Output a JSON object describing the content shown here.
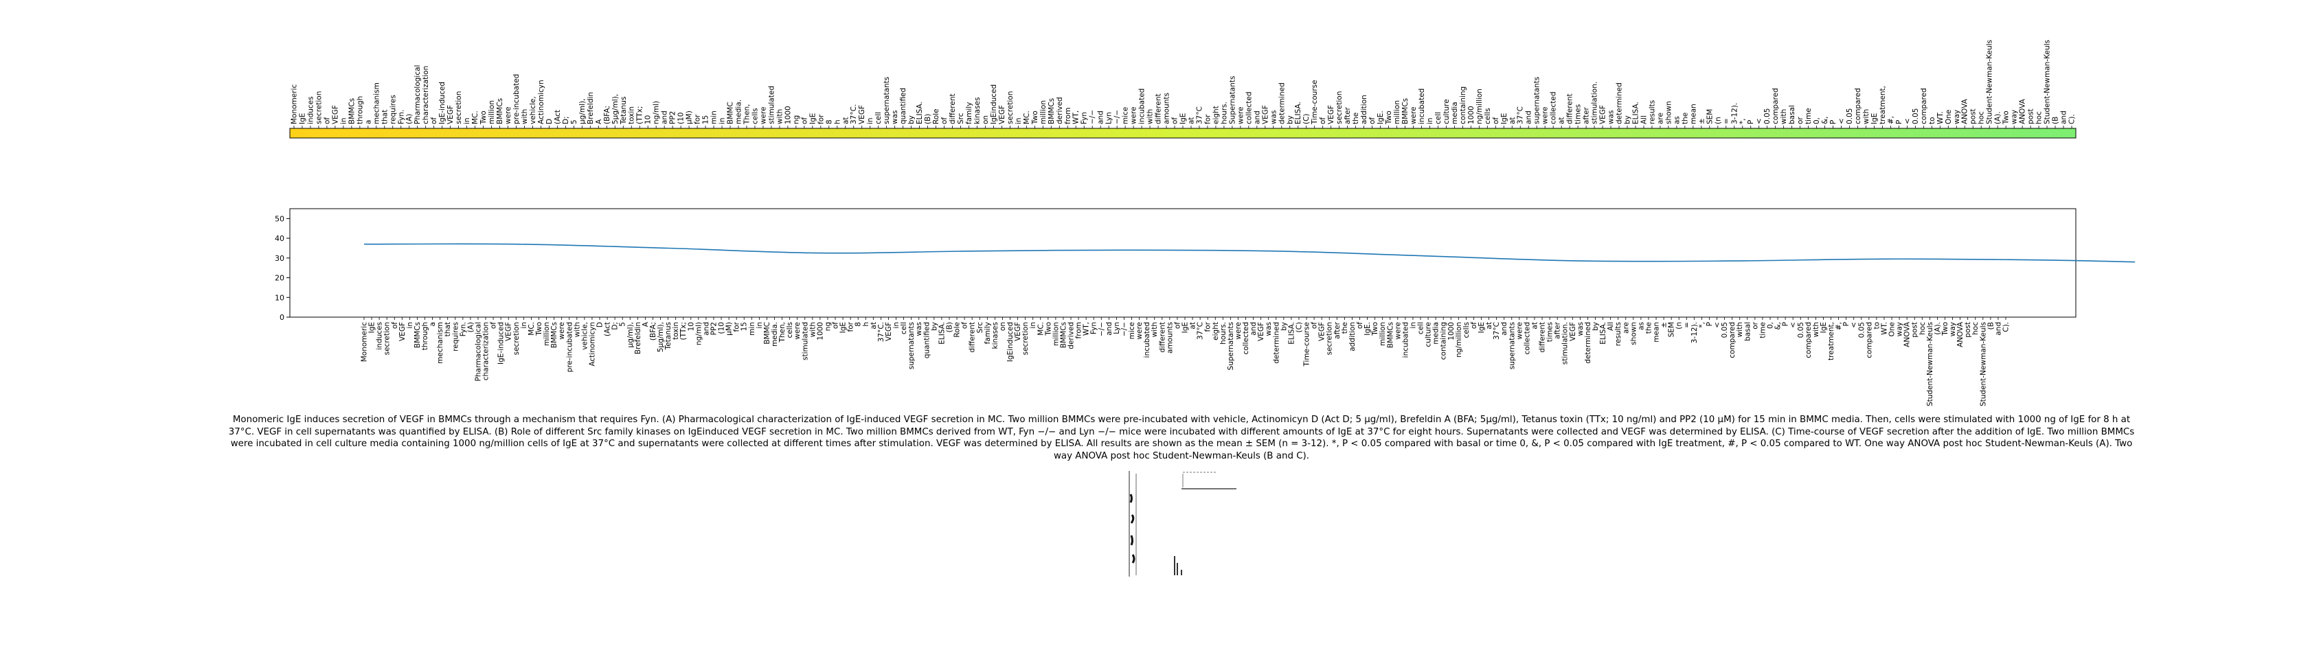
{
  "chart_data": [
    {
      "type": "heatmap",
      "panel": "top",
      "title": "",
      "words": [
        "Monomeric",
        "IgE",
        "induces",
        "secretion",
        "of",
        "VEGF",
        "in",
        "BMMCs",
        "through",
        "a",
        "mechanism",
        "that",
        "requires",
        "Fyn.",
        "(A)",
        "Pharmacological",
        "characterization",
        "of",
        "IgE-induced",
        "VEGF",
        "secretion",
        "in",
        "MC.",
        "Two",
        "million",
        "BMMCs",
        "were",
        "pre-incubated",
        "with",
        "vehicle,",
        "Actinomicyn",
        "D",
        "(Act",
        "D;",
        "5",
        "μg/ml),",
        "Brefeldin",
        "A",
        "(BFA;",
        "5μg/ml),",
        "Tetanus",
        "toxin",
        "(TTx;",
        "10",
        "ng/ml)",
        "and",
        "PP2",
        "(10",
        "μM)",
        "for",
        "15",
        "min",
        "in",
        "BMMC",
        "media.",
        "Then,",
        "cells",
        "were",
        "stimulated",
        "with",
        "1000",
        "ng",
        "of",
        "IgE",
        "for",
        "8",
        "h",
        "at",
        "37°C.",
        "VEGF",
        "in",
        "cell",
        "supernatants",
        "was",
        "quantified",
        "by",
        "ELISA.",
        "(B)",
        "Role",
        "of",
        "different",
        "Src",
        "family",
        "kinases",
        "on",
        "IgEinduced",
        "VEGF",
        "secretion",
        "in",
        "MC.",
        "Two",
        "million",
        "BMMCs",
        "derived",
        "from",
        "WT,",
        "Fyn",
        "−/−",
        "and",
        "Lyn",
        "−/−",
        "mice",
        "were",
        "incubated",
        "with",
        "different",
        "amounts",
        "of",
        "IgE",
        "at",
        "37°C",
        "for",
        "eight",
        "hours.",
        "Supernatants",
        "were",
        "collected",
        "and",
        "VEGF",
        "was",
        "determined",
        "by",
        "ELISA.",
        "(C)",
        "Time-course",
        "of",
        "VEGF",
        "secretion",
        "after",
        "the",
        "addition",
        "of",
        "IgE.",
        "Two",
        "million",
        "BMMCs",
        "were",
        "incubated",
        "in",
        "cell",
        "culture",
        "media",
        "containing",
        "1000",
        "ng/million",
        "cells",
        "of",
        "IgE",
        "at",
        "37°C",
        "and",
        "supernatants",
        "were",
        "collected",
        "at",
        "different",
        "times",
        "after",
        "stimulation.",
        "VEGF",
        "was",
        "determined",
        "by",
        "ELISA.",
        "All",
        "results",
        "are",
        "shown",
        "as",
        "the",
        "mean",
        "±",
        "SEM",
        "(n",
        "=",
        "3-12).",
        "*,",
        "P",
        "<",
        "0.05",
        "compared",
        "with",
        "basal",
        "or",
        "time",
        "0,",
        "&,",
        "P",
        "<",
        "0.05",
        "compared",
        "with",
        "IgE",
        "treatment,",
        "#,",
        "P",
        "<",
        "0.05",
        "compared",
        "to",
        "WT.",
        "One",
        "way",
        "ANOVA",
        "post",
        "hoc",
        "Student-Newman-Keuls",
        "(A).",
        "Two",
        "way",
        "ANOVA",
        "post",
        "hoc",
        "Student-Newman-Keuls",
        "(B",
        "and",
        "C)."
      ],
      "color_start": "#ffd21a",
      "color_mid": "#d6f23a",
      "color_end": "#7dee72",
      "bar_border": "#000000",
      "legend": "none",
      "grid": false
    },
    {
      "type": "line",
      "panel": "bottom",
      "title": "",
      "xlabel": "",
      "ylabel": "",
      "ylim": [
        0,
        55
      ],
      "yticks": [
        0,
        10,
        20,
        30,
        40,
        50
      ],
      "x_tick_labels": [
        "Monomeric",
        "IgE",
        "induces",
        "secretion",
        "of",
        "VEGF",
        "in",
        "BMMCs",
        "through",
        "a",
        "mechanism",
        "that",
        "requires",
        "Fyn.",
        "(A)",
        "Pharmacological",
        "characterization",
        "of",
        "IgE-induced",
        "VEGF",
        "secretion",
        "in",
        "MC.",
        "Two",
        "million",
        "BMMCs",
        "were",
        "pre-incubated",
        "with",
        "vehicle,",
        "Actinomicyn",
        "D",
        "(Act",
        "D;",
        "5",
        "μg/ml),",
        "Brefeldin",
        "A",
        "(BFA;",
        "5μg/ml),",
        "Tetanus",
        "toxin",
        "(TTx;",
        "10",
        "ng/ml)",
        "and",
        "PP2",
        "(10",
        "μM)",
        "for",
        "15",
        "min",
        "in",
        "BMMC",
        "media.",
        "Then,",
        "cells",
        "were",
        "stimulated",
        "with",
        "1000",
        "ng",
        "of",
        "IgE",
        "for",
        "8",
        "h",
        "at",
        "37°C.",
        "VEGF",
        "in",
        "cell",
        "supernatants",
        "was",
        "quantified",
        "by",
        "ELISA.",
        "(B)",
        "Role",
        "of",
        "different",
        "Src",
        "family",
        "kinases",
        "on",
        "IgEinduced",
        "VEGF",
        "secretion",
        "in",
        "MC.",
        "Two",
        "million",
        "BMMCs",
        "derived",
        "from",
        "WT,",
        "Fyn",
        "−/−",
        "and",
        "Lyn",
        "−/−",
        "mice",
        "were",
        "incubated",
        "with",
        "different",
        "amounts",
        "of",
        "IgE",
        "at",
        "37°C",
        "for",
        "eight",
        "hours.",
        "Supernatants",
        "were",
        "collected",
        "and",
        "VEGF",
        "was",
        "determined",
        "by",
        "ELISA.",
        "(C)",
        "Time-course",
        "of",
        "VEGF",
        "secretion",
        "after",
        "the",
        "addition",
        "of",
        "IgE.",
        "Two",
        "million",
        "BMMCs",
        "were",
        "incubated",
        "in",
        "cell",
        "culture",
        "media",
        "containing",
        "1000",
        "ng/million",
        "cells",
        "of",
        "IgE",
        "at",
        "37°C",
        "and",
        "supernatants",
        "were",
        "collected",
        "at",
        "different",
        "times",
        "after",
        "stimulation.",
        "VEGF",
        "was",
        "determined",
        "by",
        "ELISA.",
        "All",
        "results",
        "are",
        "shown",
        "as",
        "the",
        "mean",
        "±",
        "SEM",
        "(n",
        "=",
        "3-12).",
        "*,",
        "P",
        "<",
        "0.05",
        "compared",
        "with",
        "basal",
        "or",
        "time",
        "0,",
        "&,",
        "P",
        "<",
        "0.05",
        "compared",
        "with",
        "IgE",
        "treatment,",
        "#,",
        "P",
        "<",
        "0.05",
        "compared",
        "to",
        "WT.",
        "One",
        "way",
        "ANOVA",
        "post",
        "hoc",
        "Student-Newman-Keuls",
        "(A).",
        "Two",
        "way",
        "ANOVA",
        "post",
        "hoc",
        "Student-Newman-Keuls",
        "(B",
        "and",
        "C)."
      ],
      "series": [
        {
          "color": "#1f77b4",
          "x": [
            0,
            20,
            40,
            60,
            80,
            100,
            120,
            140,
            160,
            180,
            200,
            220,
            233
          ],
          "y": [
            37.0,
            37.0,
            35.0,
            32.5,
            33.5,
            34.0,
            33.5,
            31.0,
            28.5,
            28.5,
            29.5,
            29.0,
            28.0
          ]
        }
      ],
      "legend": "none",
      "grid": false
    }
  ],
  "caption": "Monomeric IgE induces secretion of VEGF in BMMCs through a mechanism that requires Fyn. (A) Pharmacological characterization of IgE-induced VEGF secretion in MC. Two million BMMCs were pre-incubated with vehicle, Actinomicyn D (Act D; 5 μg/ml), Brefeldin A (BFA; 5μg/ml), Tetanus toxin (TTx; 10 ng/ml) and PP2 (10 μM) for 15 min in BMMC media. Then, cells were stimulated with 1000 ng of IgE for 8 h at 37°C. VEGF in cell supernatants was quantified by ELISA. (B) Role of different Src family kinases on IgEinduced VEGF secretion in MC. Two million BMMCs derived from WT, Fyn −/− and Lyn −/− mice were incubated with different amounts of IgE at 37°C for eight hours. Supernatants were collected and VEGF was determined by ELISA. (C) Time-course of VEGF secretion after the addition of IgE. Two million BMMCs were incubated in cell culture media containing 1000 ng/million cells of IgE at 37°C and supernatants were collected at different times after stimulation. VEGF was determined by ELISA. All results are shown as the mean ± SEM (n = 3-12). *, P < 0.05 compared with basal or time 0, &, P < 0.05 compared with IgE treatment, #, P < 0.05 compared to WT. One way ANOVA post hoc Student-Newman-Keuls (A). Two way ANOVA post hoc Student-Newman-Keuls (B and C)."
}
